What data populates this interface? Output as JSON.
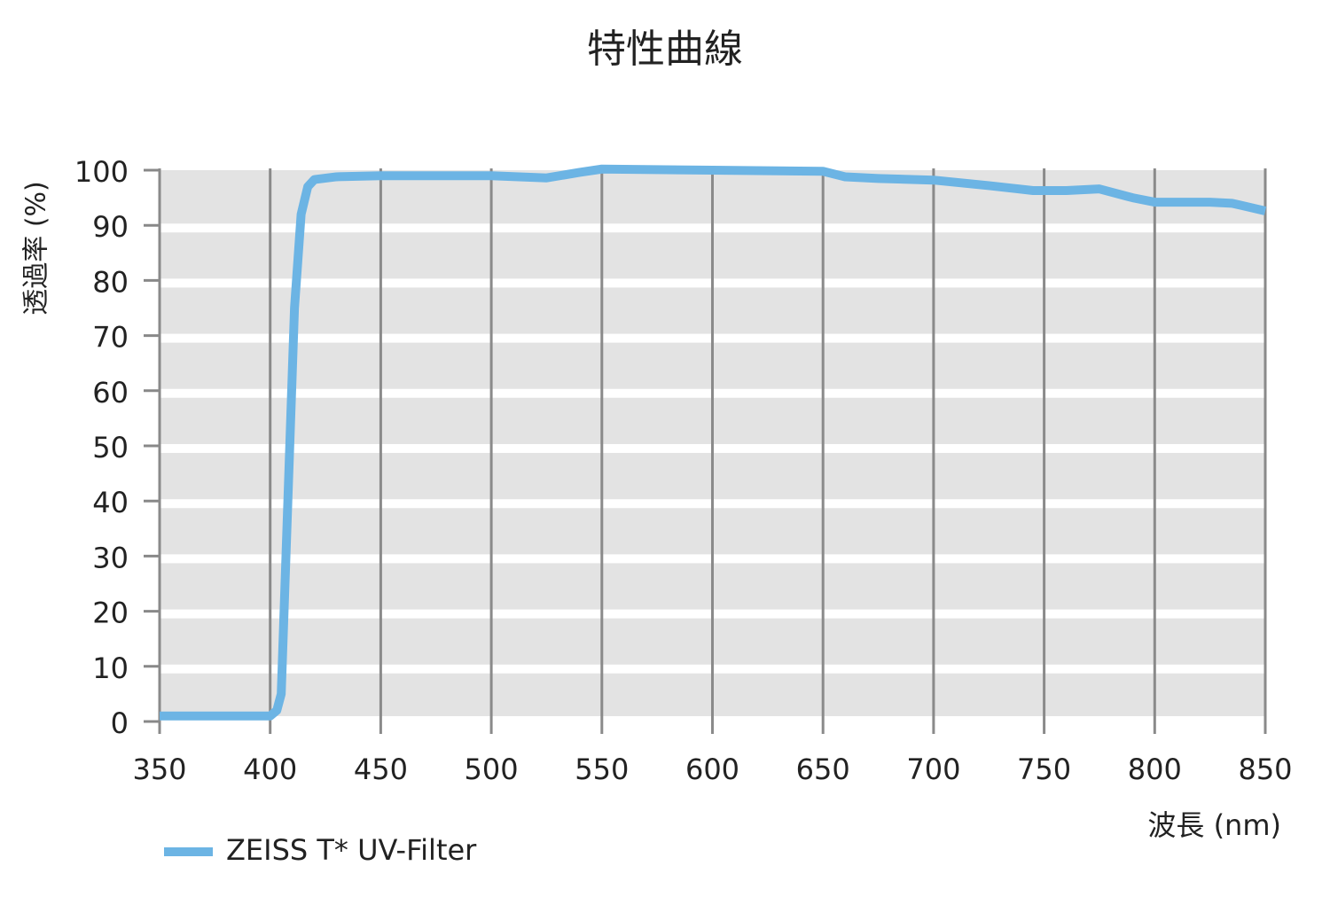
{
  "chart_data": {
    "type": "line",
    "title": "特性曲線",
    "x_label": "波長 (nm)",
    "y_label": "透過率 (%)",
    "x": [
      350,
      400,
      403,
      405,
      408,
      411,
      414,
      417,
      420,
      430,
      450,
      500,
      525,
      540,
      550,
      600,
      650,
      660,
      675,
      700,
      725,
      745,
      760,
      775,
      790,
      800,
      825,
      835,
      850
    ],
    "series": [
      {
        "name": "ZEISS T* UV-Filter",
        "color": "#6cb4e4",
        "values": [
          1,
          1,
          2,
          5,
          40,
          75,
          92,
          97,
          98.3,
          98.8,
          99,
          99,
          98.6,
          99.6,
          100.2,
          100,
          99.8,
          98.8,
          98.5,
          98.2,
          97.2,
          96.3,
          96.3,
          96.6,
          95,
          94.2,
          94.2,
          94,
          92.6
        ]
      }
    ],
    "xlim": [
      350,
      850
    ],
    "xticks": [
      350,
      400,
      450,
      500,
      550,
      600,
      650,
      700,
      750,
      800,
      850
    ],
    "ylim": [
      0,
      100
    ],
    "yticks": [
      0,
      10,
      20,
      30,
      40,
      50,
      60,
      70,
      80,
      90,
      100
    ],
    "grid": true
  }
}
